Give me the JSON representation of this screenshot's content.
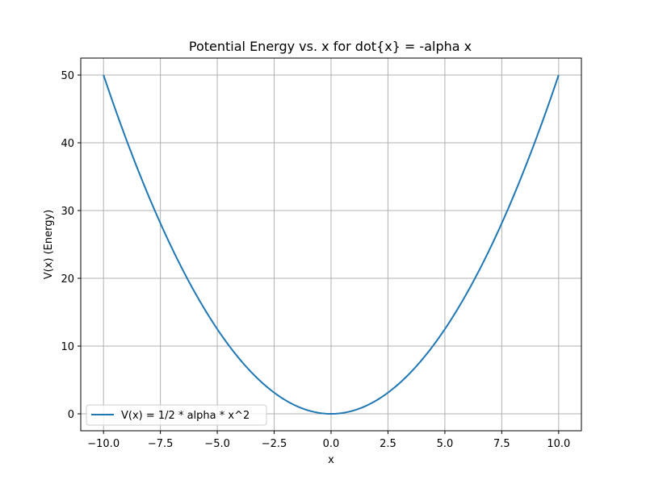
{
  "chart_data": {
    "type": "line",
    "title": "Potential Energy vs. x for dot{x} = -alpha x",
    "xlabel": "x",
    "ylabel": "V(x) (Energy)",
    "xlim": [
      -11.0,
      11.0
    ],
    "ylim": [
      -2.5,
      52.5
    ],
    "xticks": [
      -10.0,
      -7.5,
      -5.0,
      -2.5,
      0.0,
      2.5,
      5.0,
      7.5,
      10.0
    ],
    "xtick_labels": [
      "−10.0",
      "−7.5",
      "−5.0",
      "−2.5",
      "0.0",
      "2.5",
      "5.0",
      "7.5",
      "10.0"
    ],
    "yticks": [
      0,
      10,
      20,
      30,
      40,
      50
    ],
    "ytick_labels": [
      "0",
      "10",
      "20",
      "30",
      "40",
      "50"
    ],
    "grid": true,
    "legend_position": "lower-left",
    "series": [
      {
        "name": "V(x) = 1/2 * alpha * x^2",
        "color": "#1f77b4",
        "x": [
          -10.0,
          -9.0,
          -8.0,
          -7.0,
          -6.0,
          -5.0,
          -4.0,
          -3.0,
          -2.0,
          -1.0,
          0.0,
          1.0,
          2.0,
          3.0,
          4.0,
          5.0,
          6.0,
          7.0,
          8.0,
          9.0,
          10.0
        ],
        "y": [
          50.0,
          40.5,
          32.0,
          24.5,
          18.0,
          12.5,
          8.0,
          4.5,
          2.0,
          0.5,
          0.0,
          0.5,
          2.0,
          4.5,
          8.0,
          12.5,
          18.0,
          24.5,
          32.0,
          40.5,
          50.0
        ]
      }
    ]
  }
}
